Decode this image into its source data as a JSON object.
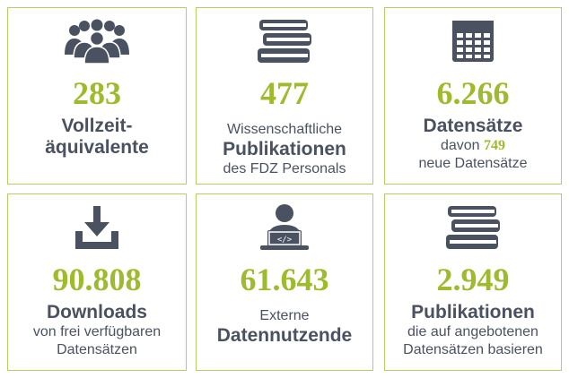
{
  "colors": {
    "accent": "#9dbb2c",
    "text": "#4a5261",
    "border": "#b5cf63"
  },
  "cards": [
    {
      "icon": "people-group-icon",
      "number": "283",
      "lines": [
        "Vollzeit-",
        "äquivalente"
      ]
    },
    {
      "icon": "book-stack-icon",
      "number": "477",
      "pre": "Wissenschaftliche",
      "bold": "Publikationen",
      "post": "des FDZ Personals"
    },
    {
      "icon": "calendar-grid-icon",
      "number": "6.266",
      "bold": "Datensätze",
      "post_prefix": "davon",
      "post_number": "749",
      "post2": "neue Datensätze"
    },
    {
      "icon": "download-icon",
      "number": "90.808",
      "bold": "Downloads",
      "post": "von frei verfügbaren",
      "post2": "Datensätzen"
    },
    {
      "icon": "person-laptop-code-icon",
      "number": "61.643",
      "pre": "Externe",
      "bold": "Datennutzende"
    },
    {
      "icon": "book-stack-icon",
      "number": "2.949",
      "bold": "Publikationen",
      "post": "die auf angebotenen",
      "post2": "Datensätzen basieren"
    }
  ]
}
